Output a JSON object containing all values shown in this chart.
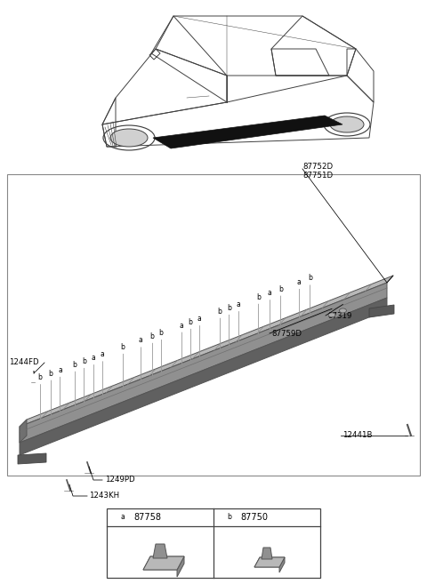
{
  "bg_color": "#ffffff",
  "sill_color_top": "#b0b0b0",
  "sill_color_front": "#888888",
  "sill_color_bottom": "#707070",
  "sill_color_left": "#666666",
  "clip_positions": [
    [
      0.055,
      "b"
    ],
    [
      0.085,
      "b"
    ],
    [
      0.11,
      "a"
    ],
    [
      0.15,
      "b"
    ],
    [
      0.175,
      "b"
    ],
    [
      0.2,
      "a"
    ],
    [
      0.225,
      "a"
    ],
    [
      0.28,
      "b"
    ],
    [
      0.33,
      "a"
    ],
    [
      0.36,
      "b"
    ],
    [
      0.385,
      "b"
    ],
    [
      0.44,
      "a"
    ],
    [
      0.465,
      "b"
    ],
    [
      0.49,
      "a"
    ],
    [
      0.545,
      "b"
    ],
    [
      0.57,
      "b"
    ],
    [
      0.595,
      "a"
    ],
    [
      0.65,
      "b"
    ],
    [
      0.68,
      "a"
    ],
    [
      0.71,
      "b"
    ],
    [
      0.76,
      "a"
    ],
    [
      0.79,
      "b"
    ]
  ],
  "label_87752D": "87752D",
  "label_87751D": "87751D",
  "label_87319": "87319",
  "label_87759D": "87759D",
  "label_12441B": "12441B",
  "label_1244FD": "1244FD",
  "label_1249PD": "1249PD",
  "label_1243KH": "1243KH",
  "label_87758": "87758",
  "label_87750": "87750"
}
